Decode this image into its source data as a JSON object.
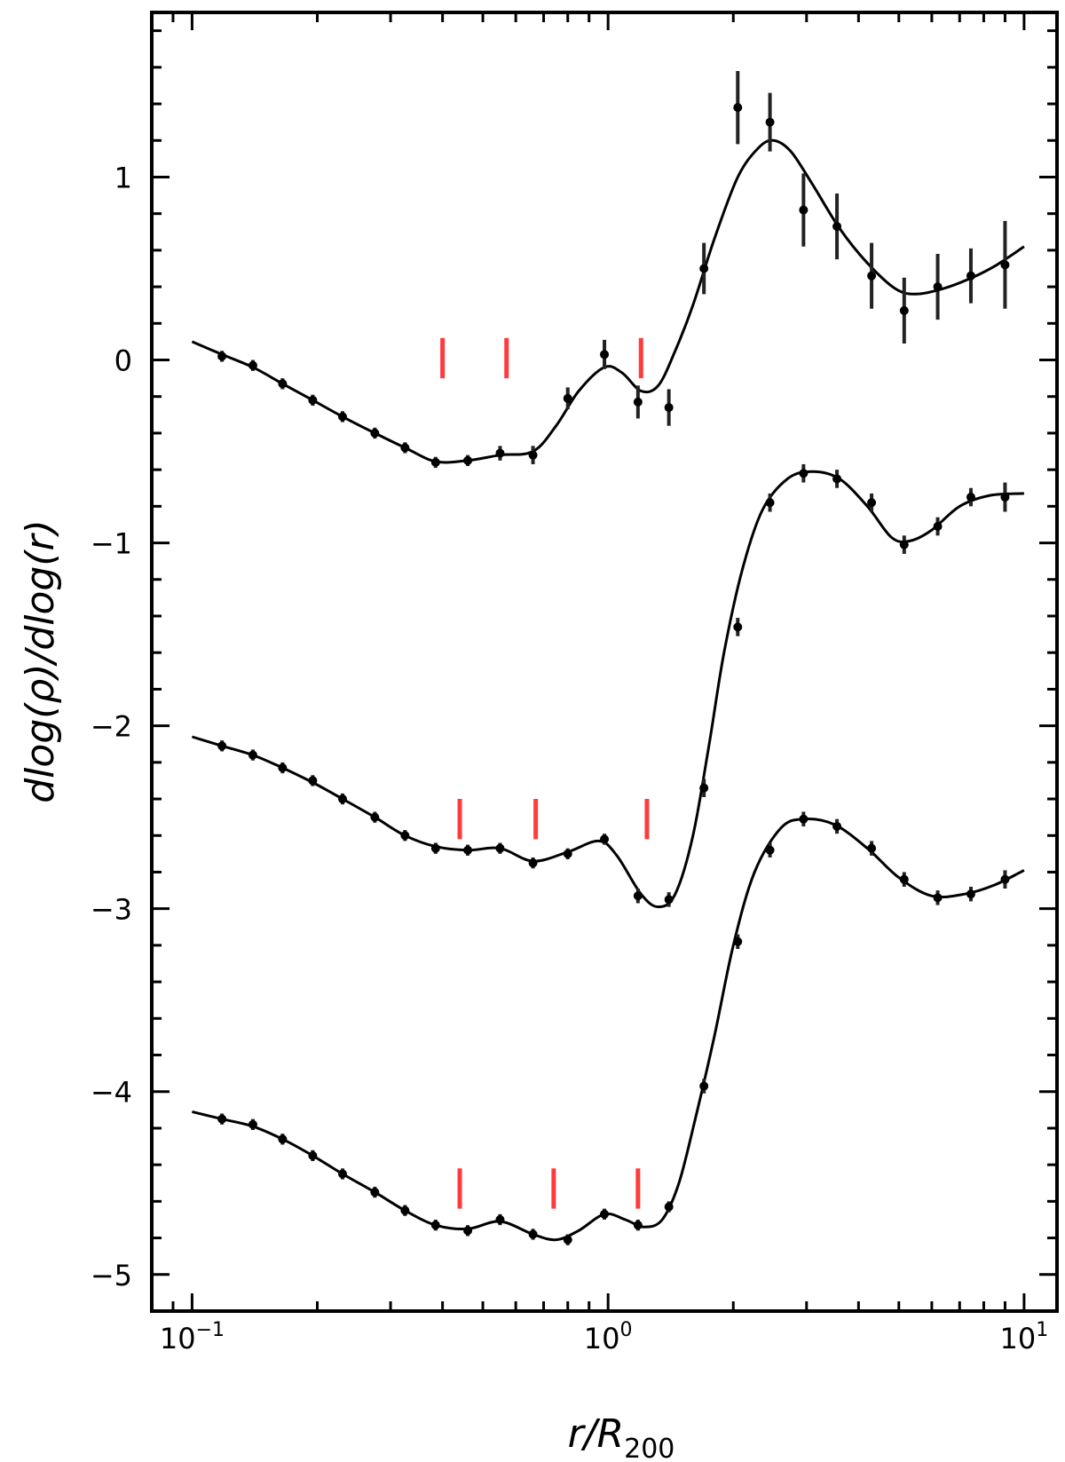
{
  "chart_data": {
    "type": "line",
    "title": "",
    "xlabel": "r/R200",
    "xlabel_main": "r/R",
    "xlabel_sub": "200",
    "ylabel": "dlog(ρ)/dlog(r)",
    "xscale": "log",
    "xlim": [
      0.08,
      12
    ],
    "ylim": [
      -5.2,
      1.9
    ],
    "grid": false,
    "legend": "none",
    "x_ticks": [
      {
        "base": "10",
        "exp": "−1",
        "value": 0.1
      },
      {
        "base": "10",
        "exp": "0",
        "value": 1
      },
      {
        "base": "10",
        "exp": "1",
        "value": 10
      }
    ],
    "y_ticks": [
      {
        "label": "1",
        "value": 1
      },
      {
        "label": "0",
        "value": 0
      },
      {
        "label": "−1",
        "value": -1
      },
      {
        "label": "−2",
        "value": -2
      },
      {
        "label": "−3",
        "value": -3
      },
      {
        "label": "−4",
        "value": -4
      },
      {
        "label": "−5",
        "value": -5
      }
    ],
    "colors": {
      "data": "#000000",
      "marker": "#ff3b3b"
    },
    "series": [
      {
        "points": [
          {
            "x": 0.118,
            "y": 0.02,
            "err": 0.03
          },
          {
            "x": 0.14,
            "y": -0.03,
            "err": 0.03
          },
          {
            "x": 0.165,
            "y": -0.13,
            "err": 0.03
          },
          {
            "x": 0.195,
            "y": -0.22,
            "err": 0.03
          },
          {
            "x": 0.23,
            "y": -0.31,
            "err": 0.03
          },
          {
            "x": 0.275,
            "y": -0.4,
            "err": 0.03
          },
          {
            "x": 0.325,
            "y": -0.48,
            "err": 0.03
          },
          {
            "x": 0.385,
            "y": -0.56,
            "err": 0.03
          },
          {
            "x": 0.46,
            "y": -0.55,
            "err": 0.03
          },
          {
            "x": 0.55,
            "y": -0.51,
            "err": 0.04
          },
          {
            "x": 0.66,
            "y": -0.52,
            "err": 0.05
          },
          {
            "x": 0.8,
            "y": -0.21,
            "err": 0.06
          },
          {
            "x": 0.98,
            "y": 0.03,
            "err": 0.08
          },
          {
            "x": 1.18,
            "y": -0.23,
            "err": 0.09
          },
          {
            "x": 1.4,
            "y": -0.26,
            "err": 0.1
          },
          {
            "x": 1.7,
            "y": 0.5,
            "err": 0.14
          },
          {
            "x": 2.05,
            "y": 1.38,
            "err": 0.2
          },
          {
            "x": 2.45,
            "y": 1.3,
            "err": 0.16
          },
          {
            "x": 2.95,
            "y": 0.82,
            "err": 0.2
          },
          {
            "x": 3.55,
            "y": 0.73,
            "err": 0.18
          },
          {
            "x": 4.3,
            "y": 0.46,
            "err": 0.18
          },
          {
            "x": 5.15,
            "y": 0.27,
            "err": 0.18
          },
          {
            "x": 6.2,
            "y": 0.4,
            "err": 0.18
          },
          {
            "x": 7.45,
            "y": 0.46,
            "err": 0.15
          },
          {
            "x": 9.0,
            "y": 0.52,
            "err": 0.24
          }
        ],
        "fit": [
          [
            0.1,
            0.1
          ],
          [
            0.118,
            0.03
          ],
          [
            0.14,
            -0.04
          ],
          [
            0.165,
            -0.13
          ],
          [
            0.195,
            -0.22
          ],
          [
            0.23,
            -0.31
          ],
          [
            0.275,
            -0.4
          ],
          [
            0.325,
            -0.48
          ],
          [
            0.385,
            -0.555
          ],
          [
            0.46,
            -0.55
          ],
          [
            0.55,
            -0.52
          ],
          [
            0.66,
            -0.5
          ],
          [
            0.75,
            -0.36
          ],
          [
            0.85,
            -0.17
          ],
          [
            0.98,
            -0.04
          ],
          [
            1.08,
            -0.07
          ],
          [
            1.2,
            -0.17
          ],
          [
            1.32,
            -0.14
          ],
          [
            1.45,
            0.05
          ],
          [
            1.6,
            0.3
          ],
          [
            1.8,
            0.66
          ],
          [
            2.05,
            1.0
          ],
          [
            2.3,
            1.16
          ],
          [
            2.5,
            1.2
          ],
          [
            2.75,
            1.14
          ],
          [
            3.1,
            0.96
          ],
          [
            3.6,
            0.72
          ],
          [
            4.2,
            0.53
          ],
          [
            4.9,
            0.39
          ],
          [
            5.5,
            0.36
          ],
          [
            6.4,
            0.39
          ],
          [
            7.5,
            0.45
          ],
          [
            8.6,
            0.52
          ],
          [
            10.0,
            0.62
          ]
        ]
      },
      {
        "points": [
          {
            "x": 0.118,
            "y": -2.11,
            "err": 0.03
          },
          {
            "x": 0.14,
            "y": -2.16,
            "err": 0.03
          },
          {
            "x": 0.165,
            "y": -2.23,
            "err": 0.03
          },
          {
            "x": 0.195,
            "y": -2.3,
            "err": 0.03
          },
          {
            "x": 0.23,
            "y": -2.4,
            "err": 0.03
          },
          {
            "x": 0.275,
            "y": -2.5,
            "err": 0.03
          },
          {
            "x": 0.325,
            "y": -2.6,
            "err": 0.03
          },
          {
            "x": 0.385,
            "y": -2.67,
            "err": 0.03
          },
          {
            "x": 0.46,
            "y": -2.68,
            "err": 0.03
          },
          {
            "x": 0.55,
            "y": -2.67,
            "err": 0.03
          },
          {
            "x": 0.66,
            "y": -2.75,
            "err": 0.03
          },
          {
            "x": 0.8,
            "y": -2.7,
            "err": 0.03
          },
          {
            "x": 0.98,
            "y": -2.62,
            "err": 0.03
          },
          {
            "x": 1.18,
            "y": -2.93,
            "err": 0.04
          },
          {
            "x": 1.4,
            "y": -2.95,
            "err": 0.04
          },
          {
            "x": 1.7,
            "y": -2.34,
            "err": 0.05
          },
          {
            "x": 2.05,
            "y": -1.46,
            "err": 0.05
          },
          {
            "x": 2.45,
            "y": -0.78,
            "err": 0.05
          },
          {
            "x": 2.95,
            "y": -0.62,
            "err": 0.05
          },
          {
            "x": 3.55,
            "y": -0.65,
            "err": 0.05
          },
          {
            "x": 4.3,
            "y": -0.78,
            "err": 0.05
          },
          {
            "x": 5.15,
            "y": -1.01,
            "err": 0.05
          },
          {
            "x": 6.2,
            "y": -0.91,
            "err": 0.05
          },
          {
            "x": 7.45,
            "y": -0.75,
            "err": 0.05
          },
          {
            "x": 9.0,
            "y": -0.75,
            "err": 0.08
          }
        ],
        "fit": [
          [
            0.1,
            -2.06
          ],
          [
            0.118,
            -2.11
          ],
          [
            0.14,
            -2.16
          ],
          [
            0.165,
            -2.23
          ],
          [
            0.195,
            -2.31
          ],
          [
            0.23,
            -2.4
          ],
          [
            0.275,
            -2.5
          ],
          [
            0.325,
            -2.6
          ],
          [
            0.385,
            -2.66
          ],
          [
            0.46,
            -2.68
          ],
          [
            0.55,
            -2.67
          ],
          [
            0.66,
            -2.74
          ],
          [
            0.8,
            -2.69
          ],
          [
            0.95,
            -2.63
          ],
          [
            1.05,
            -2.71
          ],
          [
            1.2,
            -2.92
          ],
          [
            1.32,
            -2.99
          ],
          [
            1.45,
            -2.92
          ],
          [
            1.6,
            -2.6
          ],
          [
            1.75,
            -2.1
          ],
          [
            1.9,
            -1.6
          ],
          [
            2.1,
            -1.15
          ],
          [
            2.35,
            -0.82
          ],
          [
            2.7,
            -0.65
          ],
          [
            3.1,
            -0.61
          ],
          [
            3.6,
            -0.65
          ],
          [
            4.2,
            -0.8
          ],
          [
            4.8,
            -0.97
          ],
          [
            5.3,
            -0.99
          ],
          [
            6.0,
            -0.93
          ],
          [
            7.0,
            -0.8
          ],
          [
            8.3,
            -0.74
          ],
          [
            10.0,
            -0.73
          ]
        ]
      },
      {
        "points": [
          {
            "x": 0.118,
            "y": -4.15,
            "err": 0.03
          },
          {
            "x": 0.14,
            "y": -4.18,
            "err": 0.03
          },
          {
            "x": 0.165,
            "y": -4.26,
            "err": 0.03
          },
          {
            "x": 0.195,
            "y": -4.35,
            "err": 0.03
          },
          {
            "x": 0.23,
            "y": -4.45,
            "err": 0.03
          },
          {
            "x": 0.275,
            "y": -4.55,
            "err": 0.03
          },
          {
            "x": 0.325,
            "y": -4.65,
            "err": 0.03
          },
          {
            "x": 0.385,
            "y": -4.73,
            "err": 0.03
          },
          {
            "x": 0.46,
            "y": -4.76,
            "err": 0.03
          },
          {
            "x": 0.55,
            "y": -4.7,
            "err": 0.03
          },
          {
            "x": 0.66,
            "y": -4.78,
            "err": 0.03
          },
          {
            "x": 0.8,
            "y": -4.81,
            "err": 0.03
          },
          {
            "x": 0.98,
            "y": -4.67,
            "err": 0.03
          },
          {
            "x": 1.18,
            "y": -4.73,
            "err": 0.03
          },
          {
            "x": 1.4,
            "y": -4.63,
            "err": 0.03
          },
          {
            "x": 1.7,
            "y": -3.97,
            "err": 0.04
          },
          {
            "x": 2.05,
            "y": -3.18,
            "err": 0.04
          },
          {
            "x": 2.45,
            "y": -2.68,
            "err": 0.04
          },
          {
            "x": 2.95,
            "y": -2.51,
            "err": 0.04
          },
          {
            "x": 3.55,
            "y": -2.55,
            "err": 0.04
          },
          {
            "x": 4.3,
            "y": -2.67,
            "err": 0.04
          },
          {
            "x": 5.15,
            "y": -2.84,
            "err": 0.04
          },
          {
            "x": 6.2,
            "y": -2.94,
            "err": 0.04
          },
          {
            "x": 7.45,
            "y": -2.92,
            "err": 0.04
          },
          {
            "x": 9.0,
            "y": -2.84,
            "err": 0.05
          }
        ],
        "fit": [
          [
            0.1,
            -4.11
          ],
          [
            0.118,
            -4.15
          ],
          [
            0.14,
            -4.19
          ],
          [
            0.165,
            -4.26
          ],
          [
            0.195,
            -4.35
          ],
          [
            0.23,
            -4.45
          ],
          [
            0.275,
            -4.55
          ],
          [
            0.325,
            -4.65
          ],
          [
            0.385,
            -4.73
          ],
          [
            0.46,
            -4.75
          ],
          [
            0.55,
            -4.71
          ],
          [
            0.66,
            -4.78
          ],
          [
            0.75,
            -4.81
          ],
          [
            0.85,
            -4.76
          ],
          [
            0.98,
            -4.67
          ],
          [
            1.1,
            -4.7
          ],
          [
            1.22,
            -4.74
          ],
          [
            1.35,
            -4.7
          ],
          [
            1.48,
            -4.5
          ],
          [
            1.62,
            -4.15
          ],
          [
            1.8,
            -3.7
          ],
          [
            2.0,
            -3.2
          ],
          [
            2.25,
            -2.8
          ],
          [
            2.6,
            -2.56
          ],
          [
            2.95,
            -2.51
          ],
          [
            3.5,
            -2.54
          ],
          [
            4.2,
            -2.67
          ],
          [
            5.0,
            -2.83
          ],
          [
            6.0,
            -2.93
          ],
          [
            7.2,
            -2.92
          ],
          [
            8.5,
            -2.87
          ],
          [
            10.0,
            -2.79
          ]
        ]
      }
    ],
    "markers": [
      {
        "x": 0.4,
        "y": -0.1,
        "h": 0.22
      },
      {
        "x": 0.57,
        "y": -0.1,
        "h": 0.22
      },
      {
        "x": 1.2,
        "y": -0.1,
        "h": 0.22
      },
      {
        "x": 0.44,
        "y": -2.62,
        "h": 0.22
      },
      {
        "x": 0.67,
        "y": -2.62,
        "h": 0.22
      },
      {
        "x": 1.24,
        "y": -2.62,
        "h": 0.22
      },
      {
        "x": 0.44,
        "y": -4.64,
        "h": 0.22
      },
      {
        "x": 0.74,
        "y": -4.64,
        "h": 0.22
      },
      {
        "x": 1.18,
        "y": -4.64,
        "h": 0.22
      }
    ]
  }
}
